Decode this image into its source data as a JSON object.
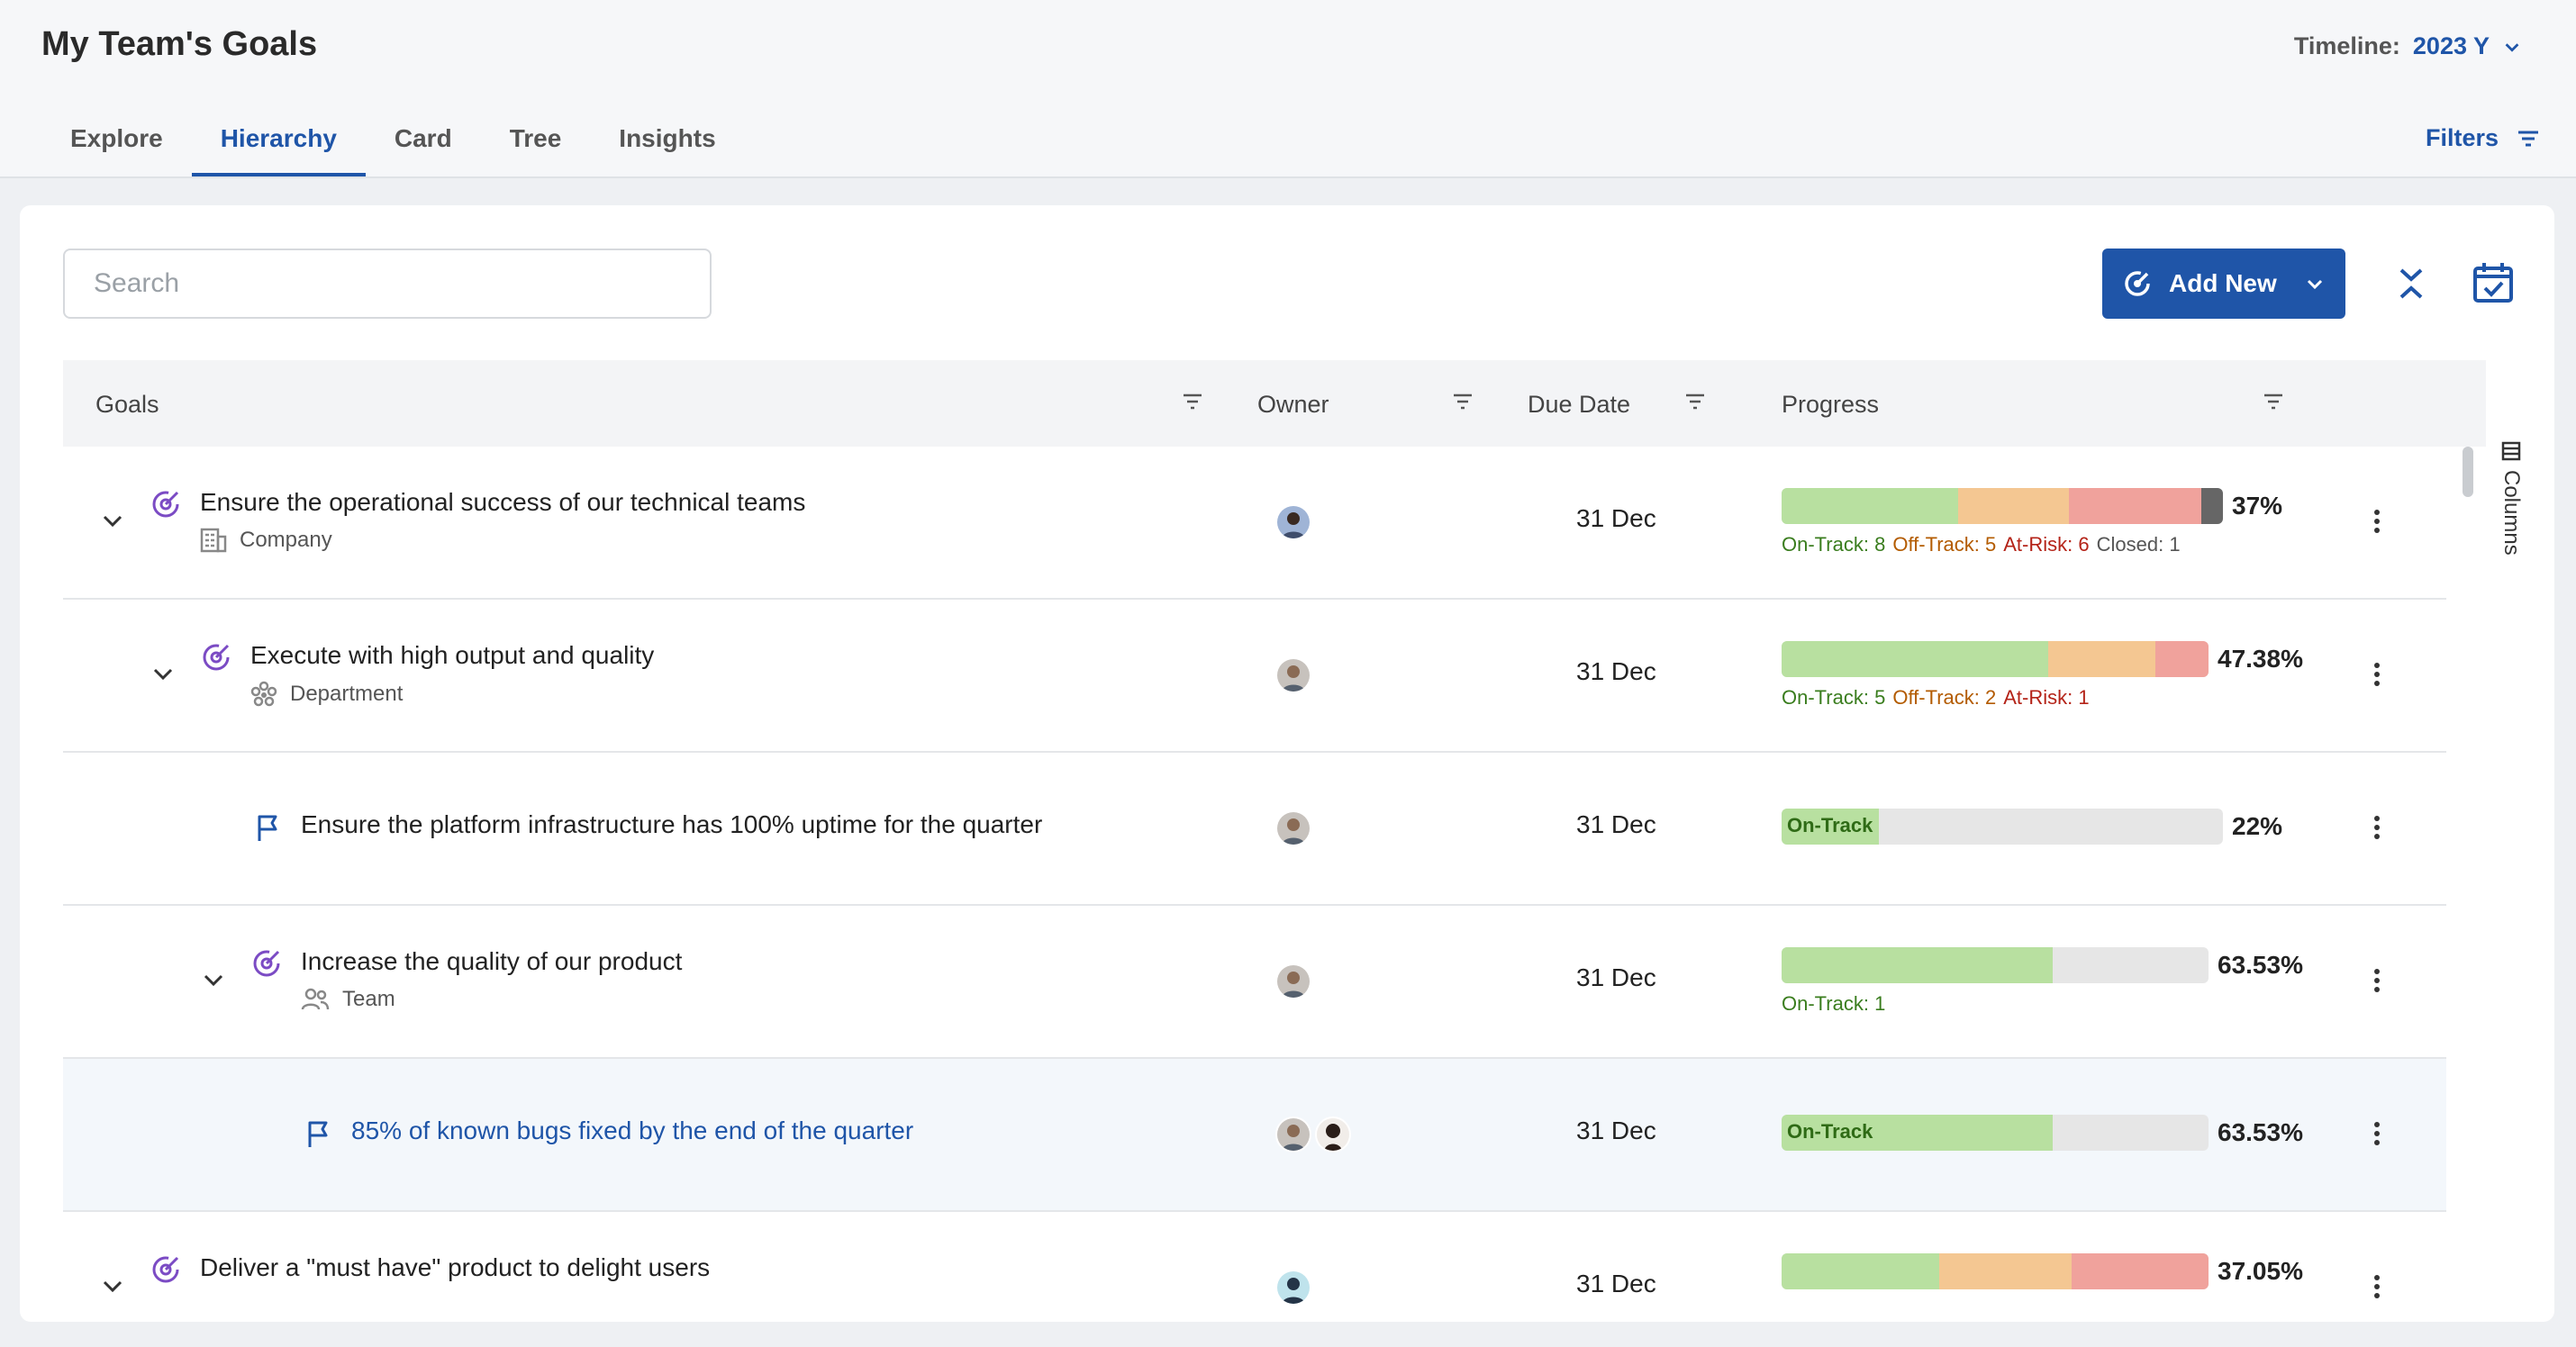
{
  "header": {
    "title": "My Team's Goals",
    "timeline_label": "Timeline:",
    "timeline_value": "2023 Y",
    "filters_label": "Filters"
  },
  "tabs": [
    {
      "label": "Explore"
    },
    {
      "label": "Hierarchy",
      "active": true
    },
    {
      "label": "Card"
    },
    {
      "label": "Tree"
    },
    {
      "label": "Insights"
    }
  ],
  "toolbar": {
    "search_placeholder": "Search",
    "add_new_label": "Add New"
  },
  "columns_label": "Columns",
  "table": {
    "headers": {
      "goals": "Goals",
      "owner": "Owner",
      "due_date": "Due Date",
      "progress": "Progress"
    },
    "rows": [
      {
        "title": "Ensure the operational success of our technical teams",
        "type": "Company",
        "due": "31 Dec",
        "percent": "37%",
        "segments": {
          "on_track": 8,
          "off_track": 5,
          "at_risk": 6,
          "closed": 1
        },
        "status": [
          "On-Track: 8",
          "Off-Track: 5",
          "At-Risk: 6",
          "Closed: 1"
        ]
      },
      {
        "title": "Execute with high output and quality",
        "type": "Department",
        "due": "31 Dec",
        "percent": "47.38%",
        "segments": {
          "on_track": 5,
          "off_track": 2,
          "at_risk": 1
        },
        "status": [
          "On-Track: 5",
          "Off-Track: 2",
          "At-Risk: 1"
        ]
      },
      {
        "title": "Ensure the platform infrastructure has 100% uptime for the quarter",
        "due": "31 Dec",
        "percent": "22%",
        "progress": 0.22,
        "bar_label": "On-Track"
      },
      {
        "title": "Increase the quality of our product",
        "type": "Team",
        "due": "31 Dec",
        "percent": "63.53%",
        "progress": 0.6353,
        "status": [
          "On-Track: 1"
        ]
      },
      {
        "title": "85% of known bugs fixed by the end of the quarter",
        "due": "31 Dec",
        "percent": "63.53%",
        "progress": 0.6353,
        "bar_label": "On-Track"
      },
      {
        "title": "Deliver a \"must have\" product to delight users",
        "due": "31 Dec",
        "percent": "37.05%"
      }
    ]
  },
  "colors": {
    "accent": "#1f55a8",
    "on_track": "#b8e0a0",
    "off_track": "#f4c792",
    "at_risk": "#f0a29c",
    "closed": "#666666",
    "goal_icon": "#7b4bc4"
  }
}
